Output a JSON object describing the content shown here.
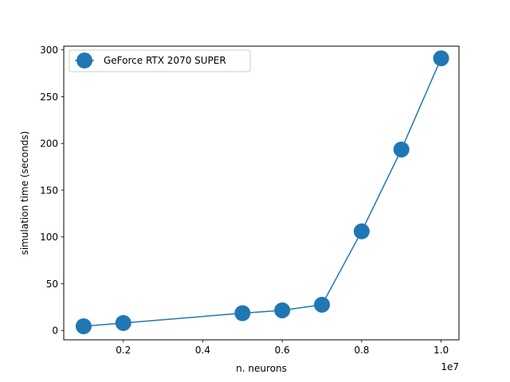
{
  "chart_data": {
    "type": "line",
    "xlabel": "n. neurons",
    "ylabel": "simulation time (seconds)",
    "x_offset_label": "1e7",
    "xlim": [
      0.05,
      1.045
    ],
    "ylim": [
      -10,
      304
    ],
    "x_ticks": [
      0.2,
      0.4,
      0.6,
      0.8,
      1.0
    ],
    "x_tick_labels": [
      "0.2",
      "0.4",
      "0.6",
      "0.8",
      "1.0"
    ],
    "y_ticks": [
      0,
      50,
      100,
      150,
      200,
      250,
      300
    ],
    "y_tick_labels": [
      "0",
      "50",
      "100",
      "150",
      "200",
      "250",
      "300"
    ],
    "grid": false,
    "legend_position": "top-left",
    "series": [
      {
        "name": "GeForce RTX 2070 SUPER",
        "color": "#1f77b4",
        "marker": "circle",
        "x": [
          0.1,
          0.2,
          0.5,
          0.6,
          0.7,
          0.8,
          0.9,
          1.0
        ],
        "y": [
          4.5,
          8,
          18.5,
          21.5,
          27.5,
          106,
          193.5,
          291
        ]
      }
    ]
  }
}
